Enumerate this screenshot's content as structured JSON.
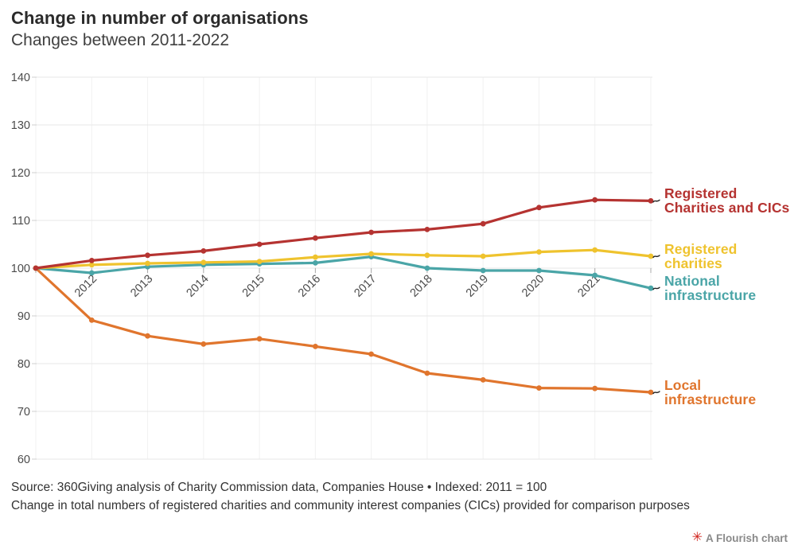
{
  "chart_data": {
    "type": "line",
    "title": "Change in number of organisations",
    "subtitle": "Changes between 2011-2022",
    "x": [
      2011,
      2012,
      2013,
      2014,
      2015,
      2016,
      2017,
      2018,
      2019,
      2020,
      2021,
      2022
    ],
    "x_axis_labels": [
      "2012",
      "2013",
      "2014",
      "2015",
      "2016",
      "2017",
      "2018",
      "2019",
      "2020",
      "2021"
    ],
    "y_ticks": [
      60,
      70,
      80,
      90,
      100,
      110,
      120,
      130,
      140
    ],
    "ylim": [
      60,
      140
    ],
    "baseline_value": 100,
    "grid": true,
    "legend_position": "right-edge-labels",
    "series": [
      {
        "name": "Registered Charities and CICs",
        "label_lines": [
          "Registered",
          "Charities and CICs"
        ],
        "color": "#b53331",
        "values": [
          100,
          101.6,
          102.7,
          103.6,
          105.0,
          106.3,
          107.5,
          108.1,
          109.3,
          112.7,
          114.3,
          114.1
        ]
      },
      {
        "name": "Registered charities",
        "label_lines": [
          "Registered",
          "charities"
        ],
        "color": "#efc32e",
        "values": [
          100,
          100.7,
          101.0,
          101.2,
          101.4,
          102.3,
          103.0,
          102.7,
          102.5,
          103.4,
          103.8,
          102.5
        ]
      },
      {
        "name": "National infrastructure",
        "label_lines": [
          "National",
          "infrastructure"
        ],
        "color": "#4aa5a7",
        "values": [
          100,
          99.0,
          100.3,
          100.7,
          100.9,
          101.1,
          102.4,
          100.0,
          99.5,
          99.5,
          98.5,
          95.8
        ]
      },
      {
        "name": "Local infrastructure",
        "label_lines": [
          "Local",
          "infrastructure"
        ],
        "color": "#e0752d",
        "values": [
          100,
          89.1,
          85.8,
          84.1,
          85.2,
          83.6,
          82.0,
          78.0,
          76.6,
          74.9,
          74.8,
          74.0
        ]
      }
    ]
  },
  "footer": {
    "source_line": "Source: 360Giving analysis of Charity Commission data, Companies House • Indexed: 2011 = 100",
    "note_line": "Change in total numbers of registered charities and community interest companies (CICs) provided for comparison purposes",
    "flourish_credit": "A Flourish chart",
    "flourish_logo_icon": "✳"
  },
  "colors": {
    "grid_horizontal": "#e7e7e7",
    "grid_vertical": "#f1f1f1",
    "grid_left_stub": "#cfcfcf",
    "x_tick": "#a9a9a9",
    "axis_text": "#4b4b4b",
    "connector": "#222222",
    "logo_red": "#d0231c",
    "credit_text": "#8a8a8a"
  }
}
